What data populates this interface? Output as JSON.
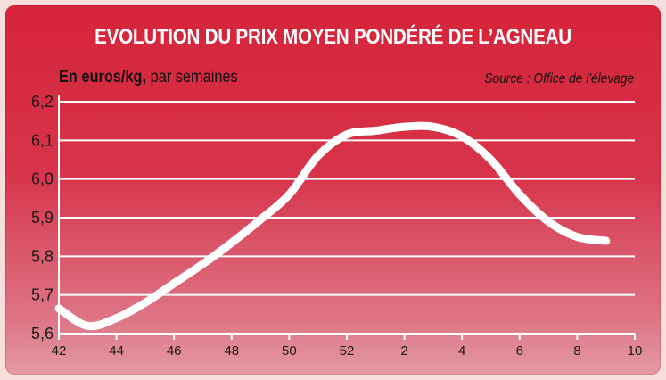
{
  "title": "EVOLUTION DU PRIX MOYEN PONDÉRÉ DE L’AGNEAU",
  "subtitle_bold": "En euros/kg,",
  "subtitle_rest": " par semaines",
  "source": "Source : Office de l'élevage",
  "colors": {
    "background_top": "#d6243a",
    "background_bottom": "#e49aa4",
    "line": "#ffffff",
    "gridline": "#ffffff"
  },
  "chart_data": {
    "type": "line",
    "x_tick_labels": [
      "42",
      "44",
      "46",
      "48",
      "50",
      "52",
      "2",
      "4",
      "6",
      "8",
      "10"
    ],
    "y_tick_labels": [
      "5,6",
      "5,7",
      "5,8",
      "5,9",
      "6,0",
      "6,1",
      "6,2"
    ],
    "ylim": [
      5.6,
      6.2
    ],
    "grid": true,
    "series": [
      {
        "x": [
          "42",
          "43",
          "44",
          "45",
          "46",
          "47",
          "48",
          "49",
          "50",
          "51",
          "52",
          "1",
          "2",
          "3",
          "4",
          "5",
          "6",
          "7",
          "8",
          "9"
        ],
        "values": [
          5.665,
          5.62,
          5.64,
          5.68,
          5.73,
          5.78,
          5.835,
          5.895,
          5.96,
          6.06,
          6.115,
          6.125,
          6.135,
          6.135,
          6.11,
          6.05,
          5.96,
          5.89,
          5.85,
          5.84
        ]
      }
    ]
  }
}
